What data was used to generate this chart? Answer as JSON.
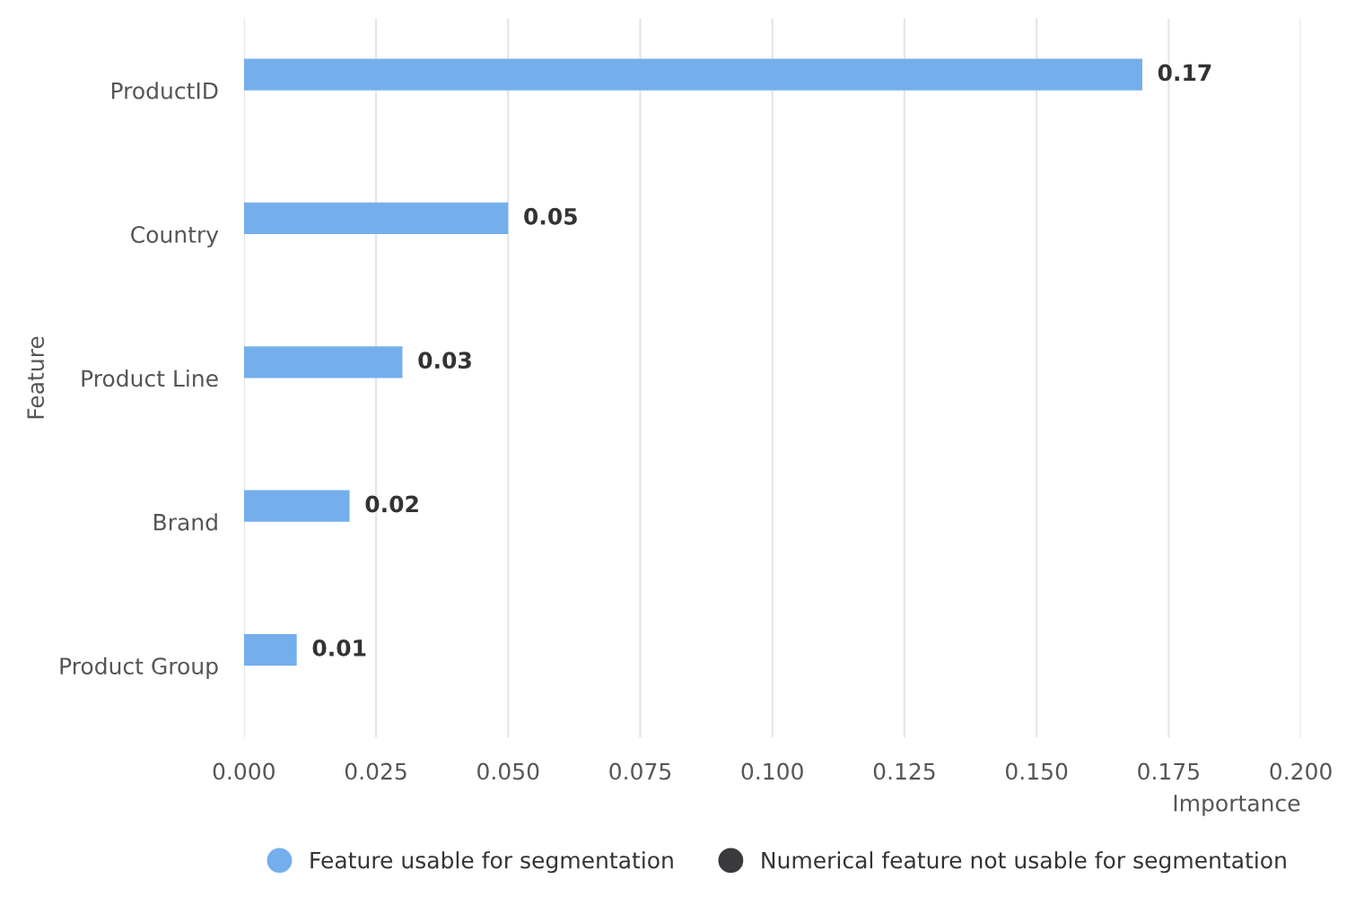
{
  "chart_data": {
    "type": "bar",
    "orientation": "horizontal",
    "xlabel": "Importance",
    "ylabel": "Feature",
    "categories": [
      "ProductID",
      "Country",
      "Product Line",
      "Brand",
      "Product Group"
    ],
    "series": [
      {
        "name": "Feature usable for segmentation",
        "color": "#74aeec",
        "values": [
          0.17,
          0.05,
          0.03,
          0.02,
          0.01
        ]
      },
      {
        "name": "Numerical feature not usable for segmentation",
        "color": "#3a3a3d",
        "values": [
          null,
          null,
          null,
          null,
          null
        ]
      }
    ],
    "xlim": [
      0,
      0.2
    ],
    "xticks": [
      {
        "value": 0,
        "label": "0.000"
      },
      {
        "value": 0.025,
        "label": "0.025"
      },
      {
        "value": 0.05,
        "label": "0.050"
      },
      {
        "value": 0.075,
        "label": "0.075"
      },
      {
        "value": 0.1,
        "label": "0.100"
      },
      {
        "value": 0.125,
        "label": "0.125"
      },
      {
        "value": 0.15,
        "label": "0.150"
      },
      {
        "value": 0.175,
        "label": "0.175"
      },
      {
        "value": 0.2,
        "label": "0.200"
      }
    ],
    "grid": "x",
    "legend": "bottom",
    "marker": "circle",
    "data_labels": true
  }
}
